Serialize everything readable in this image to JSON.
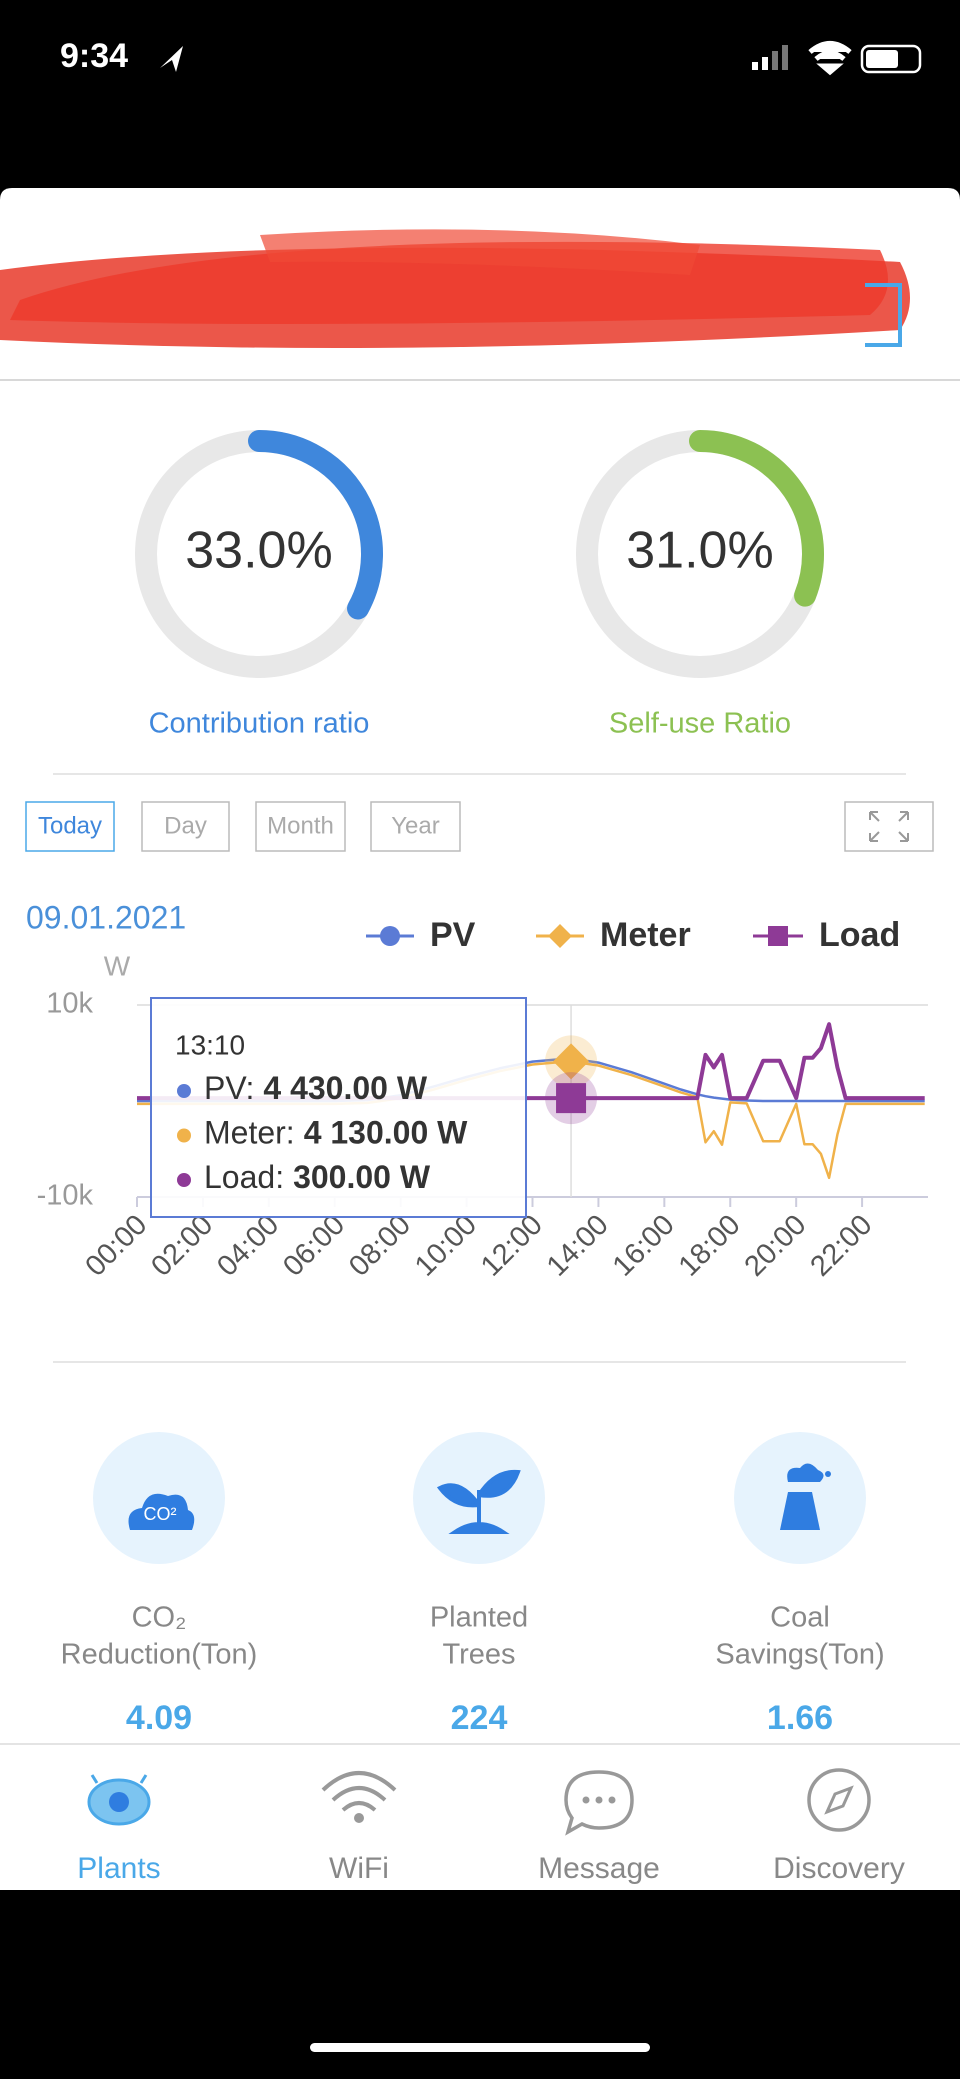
{
  "status_bar": {
    "time": "9:34"
  },
  "gauges": [
    {
      "value": 33.0,
      "label": "33.0%",
      "caption": "Contribution ratio",
      "color": "#3f87dc"
    },
    {
      "value": 31.0,
      "label": "31.0%",
      "caption": "Self-use Ratio",
      "color": "#8cc152"
    }
  ],
  "tabs": [
    "Today",
    "Day",
    "Month",
    "Year"
  ],
  "chart_data": {
    "type": "line",
    "date": "09.01.2021",
    "y_label": "W",
    "x": [
      0,
      1,
      2,
      3,
      4,
      5,
      6,
      7,
      8,
      9,
      10,
      11,
      12,
      13,
      13.17,
      14,
      15,
      16,
      16.5,
      17,
      17.25,
      17.5,
      17.75,
      18,
      18.5,
      19,
      19.5,
      20,
      20.25,
      20.5,
      20.75,
      21,
      21.25,
      21.5,
      22,
      23,
      23.9
    ],
    "series": [
      {
        "name": "PV",
        "color": "#5b7bd5",
        "marker": "circle",
        "values": [
          0,
          0,
          0,
          0,
          0,
          0,
          0,
          100,
          600,
          1500,
          2500,
          3400,
          4100,
          4400,
          4430,
          4000,
          3000,
          1800,
          1200,
          700,
          500,
          350,
          250,
          150,
          50,
          0,
          0,
          0,
          0,
          0,
          0,
          0,
          0,
          0,
          0,
          0,
          0
        ]
      },
      {
        "name": "Meter",
        "color": "#f0b24a",
        "marker": "diamond",
        "values": [
          -300,
          -300,
          -300,
          -300,
          -300,
          -300,
          -300,
          -200,
          300,
          1200,
          2200,
          3100,
          3800,
          4100,
          4130,
          3700,
          2700,
          1500,
          900,
          400,
          -4300,
          -3150,
          -4550,
          -150,
          -250,
          -4200,
          -4200,
          -300,
          -4500,
          -4500,
          -5500,
          -8000,
          -3500,
          -300,
          -300,
          -300,
          -300
        ]
      },
      {
        "name": "Load",
        "color": "#8e3a96",
        "marker": "square",
        "values": [
          300,
          300,
          300,
          300,
          300,
          300,
          300,
          300,
          300,
          300,
          300,
          300,
          300,
          300,
          300,
          300,
          300,
          300,
          300,
          300,
          4800,
          3500,
          4800,
          300,
          300,
          4200,
          4200,
          300,
          4500,
          4500,
          5500,
          8000,
          3500,
          300,
          300,
          300,
          300
        ]
      }
    ],
    "xlim": [
      0,
      24
    ],
    "xticks": [
      {
        "value": 0,
        "label": "00:00"
      },
      {
        "value": 2,
        "label": "02:00"
      },
      {
        "value": 4,
        "label": "04:00"
      },
      {
        "value": 6,
        "label": "06:00"
      },
      {
        "value": 8,
        "label": "08:00"
      },
      {
        "value": 10,
        "label": "10:00"
      },
      {
        "value": 12,
        "label": "12:00"
      },
      {
        "value": 14,
        "label": "14:00"
      },
      {
        "value": 16,
        "label": "16:00"
      },
      {
        "value": 18,
        "label": "18:00"
      },
      {
        "value": 20,
        "label": "20:00"
      },
      {
        "value": 22,
        "label": "22:00"
      }
    ],
    "ylim": [
      -10000,
      10000
    ],
    "yticks": [
      {
        "value": -10000,
        "label": "-10k"
      },
      {
        "value": 10000,
        "label": "10k"
      }
    ]
  },
  "tooltip": {
    "time": "13:10",
    "x": 13.17,
    "rows": [
      {
        "label": "PV:",
        "value": "4 430.00 W"
      },
      {
        "label": "Meter:",
        "value": "4 130.00 W"
      },
      {
        "label": "Load:",
        "value": "300.00 W"
      }
    ]
  },
  "stats": [
    {
      "icon_text": "CO²",
      "label_lines": [
        "CO₂",
        "Reduction(Ton)"
      ],
      "value": "4.09"
    },
    {
      "label_lines": [
        "Planted",
        "Trees"
      ],
      "value": "224"
    },
    {
      "label_lines": [
        "Coal",
        "Savings(Ton)"
      ],
      "value": "1.66"
    }
  ],
  "nav": [
    "Plants",
    "WiFi",
    "Message",
    "Discovery"
  ]
}
